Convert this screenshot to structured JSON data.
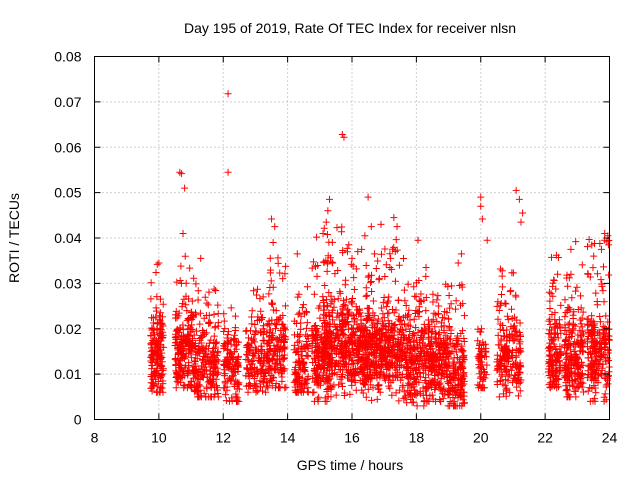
{
  "chart_data": {
    "type": "scatter",
    "title": "Day 195 of 2019, Rate Of TEC Index for receiver nlsn",
    "xlabel": "GPS time / hours",
    "ylabel": "ROTI / TECUs",
    "xlim": [
      8,
      24
    ],
    "ylim": [
      0,
      0.08
    ],
    "xticks": [
      "8",
      "10",
      "12",
      "14",
      "16",
      "18",
      "20",
      "22",
      "24"
    ],
    "yticks": [
      "0",
      "0.01",
      "0.02",
      "0.03",
      "0.04",
      "0.05",
      "0.06",
      "0.07",
      "0.08"
    ],
    "grid": true,
    "marker": "plus",
    "color": "#ff0000",
    "series": [
      {
        "name": "ROTI",
        "segments": [
          {
            "x": [
              9.75,
              10.15
            ],
            "y": [
              0.006,
              0.035
            ],
            "typical": 0.014,
            "density": 160
          },
          {
            "x": [
              10.5,
              11.1
            ],
            "y": [
              0.007,
              0.036
            ],
            "typical": 0.015,
            "density": 200
          },
          {
            "x": [
              11.1,
              11.85
            ],
            "y": [
              0.005,
              0.03
            ],
            "typical": 0.012,
            "density": 200
          },
          {
            "x": [
              12.0,
              12.5
            ],
            "y": [
              0.004,
              0.03
            ],
            "typical": 0.012,
            "density": 120
          },
          {
            "x": [
              12.7,
              13.4
            ],
            "y": [
              0.006,
              0.031
            ],
            "typical": 0.014,
            "density": 160
          },
          {
            "x": [
              13.4,
              13.95
            ],
            "y": [
              0.007,
              0.036
            ],
            "typical": 0.015,
            "density": 150
          },
          {
            "x": [
              14.2,
              14.65
            ],
            "y": [
              0.006,
              0.03
            ],
            "typical": 0.013,
            "density": 120
          },
          {
            "x": [
              14.75,
              15.3
            ],
            "y": [
              0.004,
              0.035
            ],
            "typical": 0.013,
            "density": 160
          },
          {
            "x": [
              15.1,
              15.7
            ],
            "y": [
              0.005,
              0.043
            ],
            "typical": 0.016,
            "density": 200
          },
          {
            "x": [
              15.7,
              16.3
            ],
            "y": [
              0.005,
              0.038
            ],
            "typical": 0.016,
            "density": 220
          },
          {
            "x": [
              16.3,
              16.9
            ],
            "y": [
              0.003,
              0.036
            ],
            "typical": 0.015,
            "density": 240
          },
          {
            "x": [
              16.9,
              17.6
            ],
            "y": [
              0.004,
              0.042
            ],
            "typical": 0.016,
            "density": 240
          },
          {
            "x": [
              17.6,
              18.3
            ],
            "y": [
              0.003,
              0.032
            ],
            "typical": 0.013,
            "density": 220
          },
          {
            "x": [
              18.3,
              18.9
            ],
            "y": [
              0.004,
              0.028
            ],
            "typical": 0.013,
            "density": 200
          },
          {
            "x": [
              18.9,
              19.5
            ],
            "y": [
              0.003,
              0.03
            ],
            "typical": 0.011,
            "density": 200
          },
          {
            "x": [
              19.9,
              20.2
            ],
            "y": [
              0.007,
              0.02
            ],
            "typical": 0.012,
            "density": 60
          },
          {
            "x": [
              20.5,
              21.25
            ],
            "y": [
              0.005,
              0.035
            ],
            "typical": 0.014,
            "density": 200
          },
          {
            "x": [
              22.1,
              22.5
            ],
            "y": [
              0.007,
              0.037
            ],
            "typical": 0.014,
            "density": 140
          },
          {
            "x": [
              22.6,
              23.2
            ],
            "y": [
              0.005,
              0.035
            ],
            "typical": 0.014,
            "density": 200
          },
          {
            "x": [
              23.3,
              24.0
            ],
            "y": [
              0.004,
              0.04
            ],
            "typical": 0.014,
            "density": 220
          }
        ],
        "outliers": [
          [
            12.15,
            0.0718
          ],
          [
            15.7,
            0.0628
          ],
          [
            15.75,
            0.0622
          ],
          [
            10.65,
            0.0545
          ],
          [
            10.7,
            0.0542
          ],
          [
            12.15,
            0.0545
          ],
          [
            10.8,
            0.051
          ],
          [
            21.1,
            0.0505
          ],
          [
            20.0,
            0.049
          ],
          [
            16.5,
            0.049
          ],
          [
            21.2,
            0.0485
          ],
          [
            15.3,
            0.0485
          ],
          [
            20.0,
            0.047
          ],
          [
            15.25,
            0.046
          ],
          [
            21.3,
            0.0455
          ],
          [
            17.3,
            0.0445
          ],
          [
            20.05,
            0.0442
          ],
          [
            13.5,
            0.0442
          ],
          [
            15.2,
            0.0435
          ],
          [
            21.25,
            0.0435
          ],
          [
            16.9,
            0.043
          ],
          [
            13.6,
            0.0425
          ],
          [
            17.4,
            0.0425
          ],
          [
            16.6,
            0.0425
          ],
          [
            15.1,
            0.041
          ],
          [
            10.75,
            0.041
          ],
          [
            16.4,
            0.0405
          ],
          [
            14.9,
            0.0402
          ],
          [
            23.85,
            0.041
          ],
          [
            23.95,
            0.0405
          ],
          [
            18.05,
            0.0395
          ],
          [
            20.2,
            0.0395
          ],
          [
            13.55,
            0.039
          ],
          [
            22.95,
            0.0392
          ],
          [
            15.9,
            0.0385
          ],
          [
            23.7,
            0.0388
          ],
          [
            23.85,
            0.0395
          ],
          [
            16.3,
            0.0375
          ],
          [
            23.75,
            0.0375
          ],
          [
            10.0,
            0.0345
          ],
          [
            9.95,
            0.0342
          ],
          [
            11.3,
            0.0355
          ],
          [
            16.7,
            0.0365
          ],
          [
            22.8,
            0.0375
          ],
          [
            19.4,
            0.0365
          ],
          [
            14.3,
            0.0365
          ],
          [
            22.35,
            0.0362
          ],
          [
            17.2,
            0.0355
          ],
          [
            19.3,
            0.0345
          ],
          [
            18.3,
            0.0335
          ],
          [
            16.0,
            0.0355
          ],
          [
            15.4,
            0.0345
          ]
        ]
      }
    ]
  }
}
